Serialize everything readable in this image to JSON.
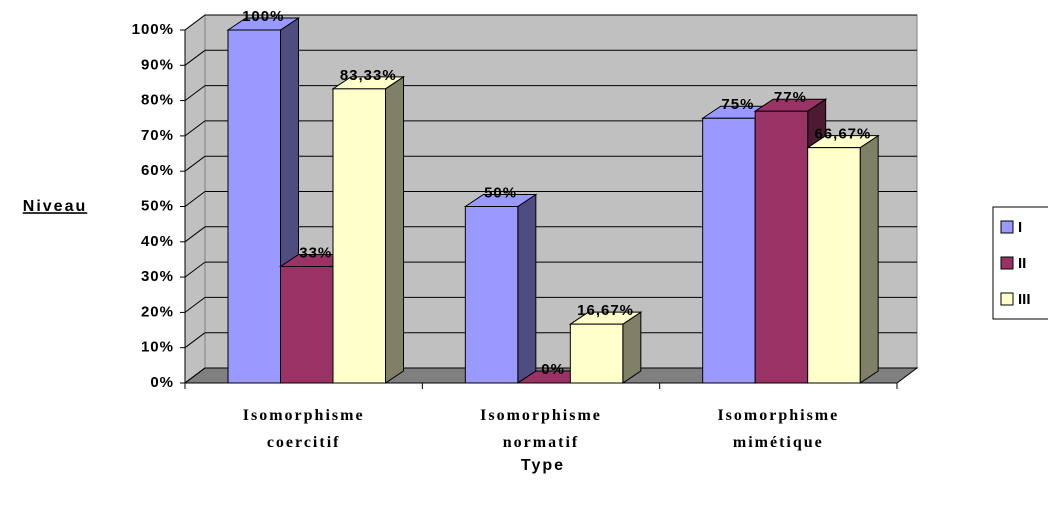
{
  "chart_data": {
    "type": "bar3d",
    "y_label": "Niveau",
    "x_label": "Type",
    "categories": [
      "Isomorphisme coercitif",
      "Isomorphisme normatif",
      "Isomorphisme mimétique"
    ],
    "series": [
      {
        "name": "I",
        "color": "#9999ff",
        "side_color": "#4d4d80",
        "values": [
          100,
          50,
          75
        ],
        "value_labels": [
          "100%",
          "50%",
          "75%"
        ]
      },
      {
        "name": "II",
        "color": "#993366",
        "side_color": "#4d1a33",
        "values": [
          33,
          0,
          77
        ],
        "value_labels": [
          "33%",
          "0%",
          "77%"
        ]
      },
      {
        "name": "III",
        "color": "#ffffcc",
        "side_color": "#808066",
        "values": [
          83.33,
          16.67,
          66.67
        ],
        "value_labels": [
          "83,33%",
          "16,67%",
          "66,67%"
        ]
      }
    ],
    "ylim": [
      0,
      100
    ],
    "yticks": [
      {
        "value": 0,
        "label": "0%"
      },
      {
        "value": 10,
        "label": "10%"
      },
      {
        "value": 20,
        "label": "20%"
      },
      {
        "value": 30,
        "label": "30%"
      },
      {
        "value": 40,
        "label": "40%"
      },
      {
        "value": 50,
        "label": "50%"
      },
      {
        "value": 60,
        "label": "60%"
      },
      {
        "value": 70,
        "label": "70%"
      },
      {
        "value": 80,
        "label": "80%"
      },
      {
        "value": 90,
        "label": "90%"
      },
      {
        "value": 100,
        "label": "100%"
      }
    ],
    "grid": true,
    "legend": "right"
  }
}
